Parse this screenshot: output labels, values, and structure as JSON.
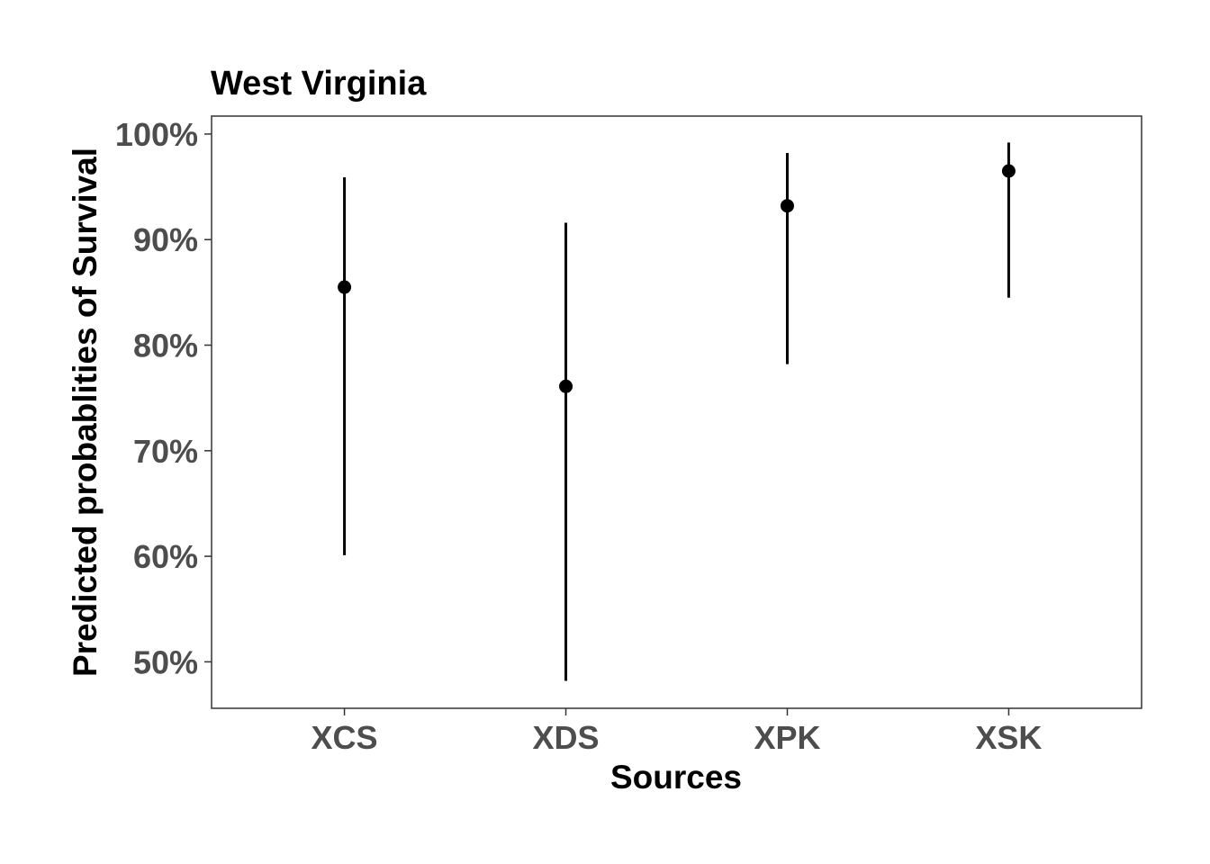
{
  "chart_data": {
    "type": "scatter",
    "title": "West Virginia",
    "xlabel": "Sources",
    "ylabel": "Predicted probablities of Survival",
    "categories": [
      "XCS",
      "XDS",
      "XPK",
      "XSK"
    ],
    "points": [
      {
        "category": "XCS",
        "value": 85.5,
        "lower": 60.1,
        "upper": 95.9
      },
      {
        "category": "XDS",
        "value": 76.1,
        "lower": 48.2,
        "upper": 91.6
      },
      {
        "category": "XPK",
        "value": 93.2,
        "lower": 78.2,
        "upper": 98.2
      },
      {
        "category": "XSK",
        "value": 96.5,
        "lower": 84.5,
        "upper": 99.2
      }
    ],
    "yticks": [
      50,
      60,
      70,
      80,
      90,
      100
    ],
    "ytick_labels": [
      "50%",
      "60%",
      "70%",
      "80%",
      "90%",
      "100%"
    ],
    "ylim": [
      45.6,
      101.7
    ],
    "grid": false,
    "legend": "none",
    "colors": {
      "point": "#000000",
      "errorbar": "#000000",
      "tick_label": "#4d4d4d",
      "panel_border": "#333333"
    }
  }
}
